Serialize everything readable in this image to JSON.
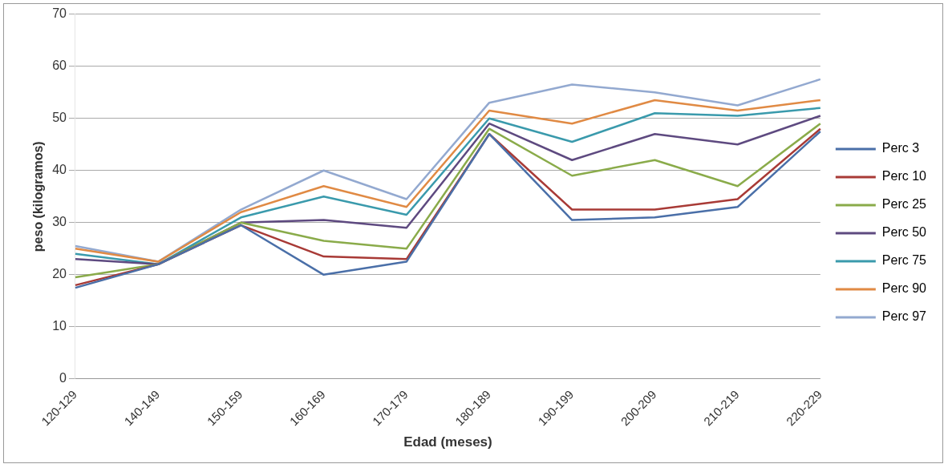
{
  "chart_data": {
    "type": "line",
    "xlabel": "Edad (meses)",
    "ylabel": "peso (kilogramos)",
    "categories": [
      "120-129",
      "140-149",
      "150-159",
      "160-169",
      "170-179",
      "180-189",
      "190-199",
      "200-209",
      "210-219",
      "220-229"
    ],
    "series": [
      {
        "name": "Perc 3",
        "color": "#4a6fa8",
        "values": [
          17.5,
          22,
          29.5,
          20,
          22.5,
          47,
          30.5,
          31,
          33,
          47.5
        ]
      },
      {
        "name": "Perc 10",
        "color": "#a83a36",
        "values": [
          18,
          22,
          29.5,
          23.5,
          23,
          47,
          32.5,
          32.5,
          34.5,
          48
        ]
      },
      {
        "name": "Perc 25",
        "color": "#8aab4a",
        "values": [
          19.5,
          22,
          30,
          26.5,
          25,
          48,
          39,
          42,
          37,
          49
        ]
      },
      {
        "name": "Perc 50",
        "color": "#5e4a80",
        "values": [
          23,
          22,
          30,
          30.5,
          29,
          49,
          42,
          47,
          45,
          50.5
        ]
      },
      {
        "name": "Perc 75",
        "color": "#3a9aac",
        "values": [
          24,
          22,
          31,
          35,
          31.5,
          50,
          45.5,
          51,
          50.5,
          52
        ]
      },
      {
        "name": "Perc 90",
        "color": "#e08a44",
        "values": [
          25,
          22.5,
          32,
          37,
          33,
          51.5,
          49,
          53.5,
          51.5,
          53.5
        ]
      },
      {
        "name": "Perc 97",
        "color": "#93a9d0",
        "values": [
          25.5,
          22.5,
          32.5,
          40,
          34.5,
          53,
          56.5,
          55,
          52.5,
          57.5
        ]
      }
    ],
    "ylim": [
      0,
      70
    ],
    "yticks": [
      0,
      10,
      20,
      30,
      40,
      50,
      60,
      70
    ],
    "grid": "y",
    "legend": "right",
    "marker": "none",
    "line_style": "solid"
  }
}
